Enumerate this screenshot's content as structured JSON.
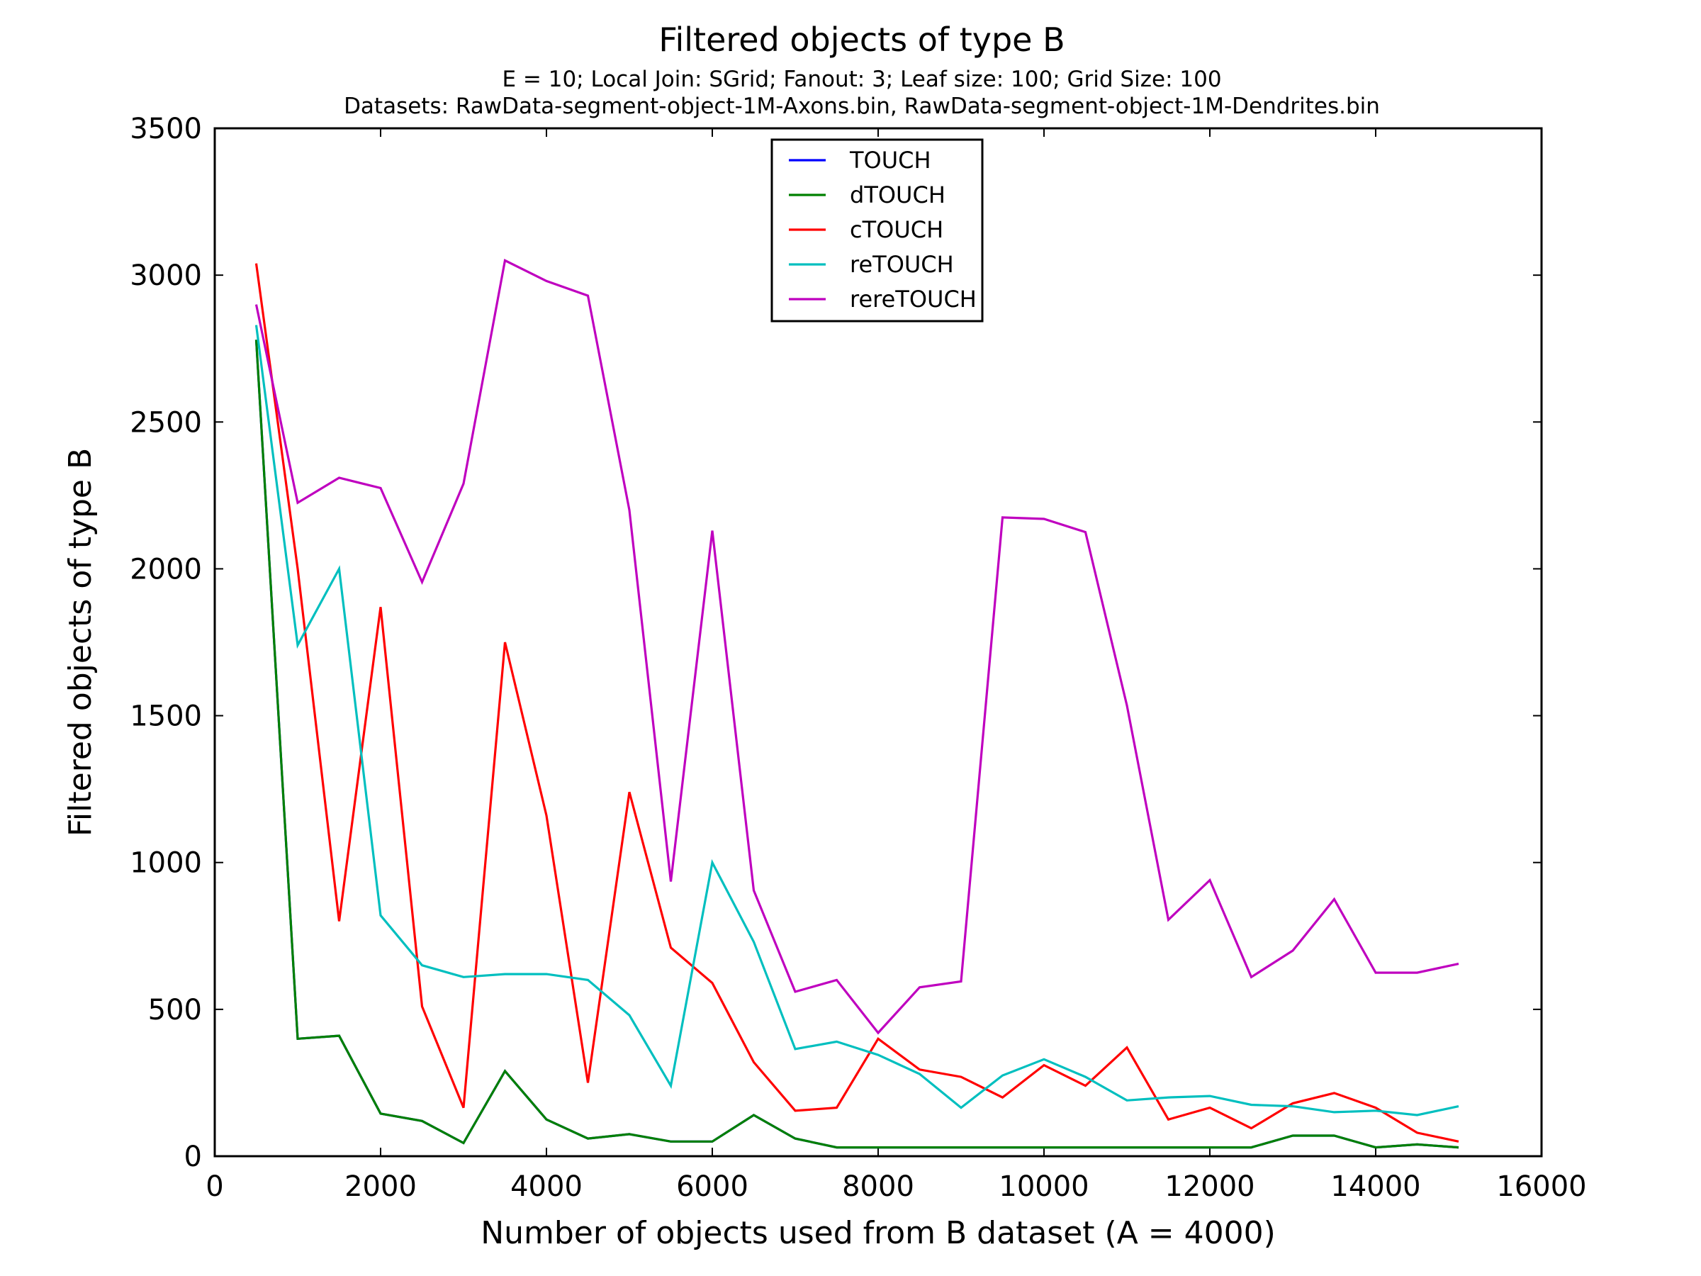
{
  "chart_data": {
    "type": "line",
    "title": "Filtered objects of type B",
    "subtitle_lines": [
      "E = 10; Local Join: SGrid; Fanout: 3; Leaf size: 100; Grid Size: 100",
      "Datasets: RawData-segment-object-1M-Axons.bin, RawData-segment-object-1M-Dendrites.bin"
    ],
    "xlabel": "Number of objects used from B dataset (A = 4000)",
    "ylabel": "Filtered objects of type B",
    "xlim": [
      0,
      16000
    ],
    "ylim": [
      0,
      3500
    ],
    "xticks": [
      0,
      2000,
      4000,
      6000,
      8000,
      10000,
      12000,
      14000,
      16000
    ],
    "yticks": [
      0,
      500,
      1000,
      1500,
      2000,
      2500,
      3000,
      3500
    ],
    "x": [
      500,
      1000,
      1500,
      2000,
      2500,
      3000,
      3500,
      4000,
      4500,
      5000,
      5500,
      6000,
      6500,
      7000,
      7500,
      8000,
      8500,
      9000,
      9500,
      10000,
      10500,
      11000,
      11500,
      12000,
      12500,
      13000,
      13500,
      14000,
      14500,
      15000
    ],
    "legend_position": "upper-center",
    "grid": false,
    "series": [
      {
        "name": "TOUCH",
        "color": "#0000ff",
        "values": [
          2780,
          400,
          410,
          145,
          120,
          45,
          290,
          125,
          60,
          75,
          50,
          50,
          140,
          60,
          30,
          30,
          30,
          30,
          30,
          30,
          30,
          30,
          30,
          30,
          30,
          70,
          70,
          30,
          40,
          30
        ]
      },
      {
        "name": "dTOUCH",
        "color": "#008000",
        "values": [
          2780,
          400,
          410,
          145,
          120,
          45,
          290,
          125,
          60,
          75,
          50,
          50,
          140,
          60,
          30,
          30,
          30,
          30,
          30,
          30,
          30,
          30,
          30,
          30,
          30,
          70,
          70,
          30,
          40,
          30
        ]
      },
      {
        "name": "cTOUCH",
        "color": "#ff0000",
        "values": [
          3040,
          2000,
          800,
          1870,
          510,
          165,
          1750,
          1160,
          250,
          1240,
          710,
          590,
          320,
          155,
          165,
          400,
          295,
          270,
          200,
          310,
          240,
          370,
          125,
          165,
          95,
          180,
          215,
          165,
          80,
          50
        ]
      },
      {
        "name": "reTOUCH",
        "color": "#00bfbf",
        "values": [
          2830,
          1740,
          2000,
          820,
          650,
          610,
          620,
          620,
          600,
          480,
          240,
          1000,
          730,
          365,
          390,
          345,
          280,
          165,
          275,
          330,
          270,
          190,
          200,
          205,
          175,
          170,
          150,
          155,
          140,
          170
        ]
      },
      {
        "name": "rereTOUCH",
        "color": "#bf00bf",
        "values": [
          2900,
          2225,
          2310,
          2275,
          1955,
          2290,
          3050,
          2980,
          2930,
          2200,
          935,
          2130,
          905,
          560,
          600,
          420,
          575,
          595,
          2175,
          2170,
          2125,
          1535,
          805,
          940,
          610,
          700,
          875,
          625,
          625,
          655
        ]
      }
    ]
  }
}
